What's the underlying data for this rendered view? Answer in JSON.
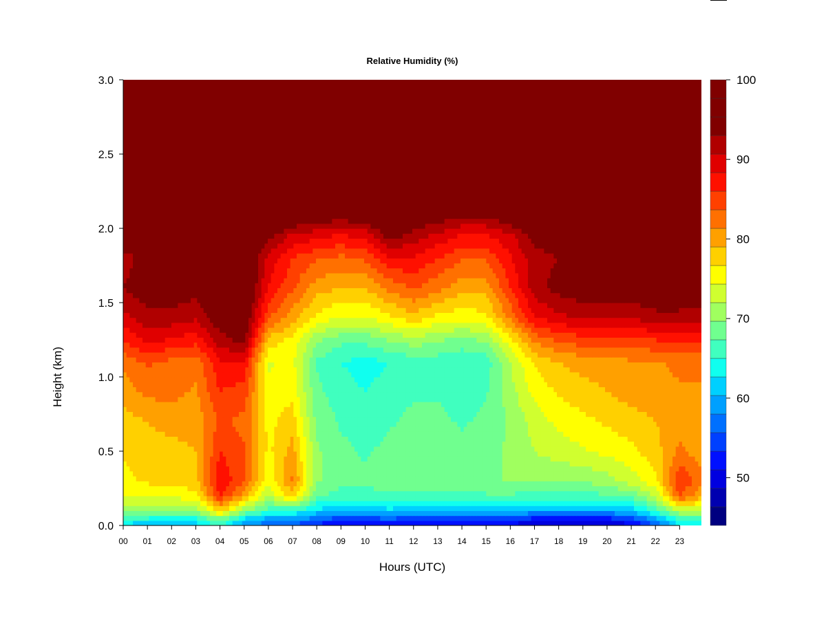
{
  "chart_data": {
    "type": "heatmap",
    "title": "Relative Humidity (%)",
    "xlabel": "Hours (UTC)",
    "ylabel": "Height (km)",
    "xlim": [
      0,
      23.9
    ],
    "ylim": [
      0,
      3.0
    ],
    "x_ticks": [
      "00",
      "01",
      "02",
      "03",
      "04",
      "05",
      "06",
      "07",
      "08",
      "09",
      "10",
      "11",
      "12",
      "13",
      "14",
      "15",
      "16",
      "17",
      "18",
      "19",
      "20",
      "21",
      "22",
      "23"
    ],
    "y_ticks": [
      "0.0",
      "0.5",
      "1.0",
      "1.5",
      "2.0",
      "2.5",
      "3.0"
    ],
    "colorbar": {
      "range": [
        44,
        100
      ],
      "tick_labels": [
        "50",
        "60",
        "70",
        "80",
        "90",
        "100"
      ],
      "levels": 24,
      "colors": [
        "#000080",
        "#0000b0",
        "#0000e0",
        "#0010ff",
        "#0040ff",
        "#0070ff",
        "#00a0ff",
        "#00d0ff",
        "#10ffef",
        "#40ffbf",
        "#70ff8f",
        "#a0ff5f",
        "#d0ff2f",
        "#ffff00",
        "#ffd000",
        "#ffa000",
        "#ff7000",
        "#ff4000",
        "#ff1000",
        "#e00000",
        "#b00000",
        "#800000",
        "#800000",
        "#800000"
      ]
    },
    "heights_km": [
      0.0,
      0.05,
      0.1,
      0.2,
      0.3,
      0.5,
      0.7,
      0.9,
      1.1,
      1.25,
      1.4,
      1.6,
      1.8,
      1.95,
      2.1,
      2.3,
      3.0
    ],
    "times_h": [
      0,
      1,
      2,
      3,
      4,
      5,
      6,
      7,
      8,
      9,
      10,
      11,
      12,
      13,
      14,
      15,
      16,
      17,
      18,
      19,
      20,
      21,
      22,
      23,
      23.9
    ],
    "rh_percent": [
      [
        62,
        60,
        60,
        61,
        65,
        58,
        56,
        55,
        52,
        50,
        50,
        51,
        50,
        50,
        50,
        50,
        50,
        48,
        48,
        48,
        48,
        50,
        55,
        62,
        62
      ],
      [
        66,
        65,
        64,
        65,
        70,
        63,
        60,
        60,
        57,
        55,
        55,
        56,
        55,
        55,
        55,
        55,
        55,
        53,
        53,
        53,
        53,
        55,
        60,
        66,
        67
      ],
      [
        70,
        70,
        69,
        70,
        78,
        70,
        66,
        65,
        62,
        61,
        61,
        62,
        61,
        61,
        61,
        61,
        61,
        60,
        60,
        60,
        60,
        61,
        66,
        72,
        72
      ],
      [
        74,
        75,
        75,
        76,
        86,
        80,
        72,
        78,
        68,
        66,
        66,
        67,
        67,
        67,
        67,
        67,
        67,
        66,
        66,
        66,
        67,
        68,
        72,
        84,
        80
      ],
      [
        76,
        77,
        77,
        78,
        88,
        84,
        75,
        82,
        70,
        68,
        68,
        69,
        69,
        69,
        69,
        69,
        70,
        70,
        70,
        70,
        71,
        73,
        76,
        86,
        82
      ],
      [
        77,
        78,
        78,
        79,
        86,
        84,
        76,
        80,
        70,
        68,
        67,
        68,
        69,
        69,
        68,
        69,
        70,
        72,
        73,
        74,
        75,
        76,
        78,
        82,
        80
      ],
      [
        78,
        79,
        80,
        80,
        84,
        83,
        76,
        78,
        69,
        67,
        66,
        67,
        68,
        68,
        67,
        68,
        70,
        73,
        75,
        76,
        77,
        78,
        79,
        80,
        80
      ],
      [
        80,
        82,
        82,
        81,
        86,
        85,
        75,
        76,
        68,
        66,
        65,
        66,
        67,
        67,
        66,
        67,
        71,
        75,
        77,
        78,
        79,
        80,
        80,
        81,
        81
      ],
      [
        82,
        84,
        83,
        82,
        88,
        88,
        74,
        75,
        67,
        65,
        64,
        65,
        66,
        66,
        65,
        66,
        72,
        77,
        79,
        80,
        80,
        81,
        81,
        82,
        82
      ],
      [
        86,
        89,
        88,
        87,
        92,
        94,
        78,
        76,
        70,
        68,
        68,
        70,
        71,
        70,
        69,
        70,
        76,
        82,
        84,
        85,
        85,
        85,
        86,
        86,
        86
      ],
      [
        90,
        92,
        92,
        91,
        95,
        96,
        84,
        80,
        76,
        74,
        74,
        76,
        78,
        76,
        75,
        76,
        82,
        88,
        90,
        91,
        91,
        91,
        92,
        92,
        92
      ],
      [
        93,
        95,
        95,
        94,
        97,
        98,
        88,
        84,
        80,
        79,
        79,
        82,
        84,
        82,
        80,
        80,
        86,
        92,
        94,
        95,
        95,
        95,
        96,
        96,
        95
      ],
      [
        92,
        94,
        94,
        93,
        96,
        97,
        90,
        86,
        84,
        83,
        84,
        88,
        88,
        86,
        84,
        84,
        88,
        92,
        93,
        94,
        94,
        94,
        95,
        95,
        94
      ],
      [
        95,
        96,
        96,
        95,
        98,
        99,
        94,
        90,
        89,
        88,
        89,
        94,
        92,
        90,
        88,
        88,
        90,
        94,
        95,
        96,
        96,
        96,
        96,
        96,
        96
      ],
      [
        98,
        98,
        98,
        98,
        99,
        100,
        99,
        97,
        96,
        95,
        96,
        98,
        96,
        95,
        94,
        94,
        96,
        98,
        98,
        99,
        99,
        99,
        99,
        99,
        99
      ],
      [
        100,
        100,
        100,
        100,
        100,
        100,
        100,
        100,
        100,
        100,
        100,
        100,
        100,
        99,
        99,
        99,
        100,
        100,
        100,
        100,
        100,
        100,
        100,
        100,
        100
      ],
      [
        100,
        100,
        100,
        100,
        100,
        100,
        100,
        100,
        100,
        100,
        100,
        100,
        100,
        100,
        100,
        100,
        100,
        100,
        100,
        100,
        100,
        100,
        100,
        100,
        100
      ]
    ]
  }
}
